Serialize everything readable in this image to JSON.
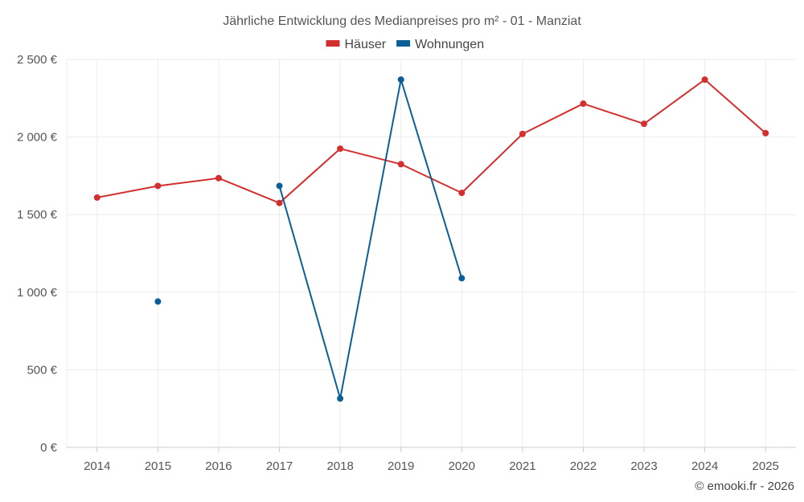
{
  "chart_data": {
    "type": "line",
    "title": "Jährliche Entwicklung des Medianpreises pro m² - 01 - Manziat",
    "categories": [
      "2014",
      "2015",
      "2016",
      "2017",
      "2018",
      "2019",
      "2020",
      "2021",
      "2022",
      "2023",
      "2024",
      "2025"
    ],
    "series": [
      {
        "name": "Häuser",
        "color": "#d32f2f",
        "values": [
          1610,
          1685,
          1735,
          1575,
          1925,
          1825,
          1640,
          2020,
          2215,
          2085,
          2370,
          2025
        ]
      },
      {
        "name": "Wohnungen",
        "color": "#0b5f97",
        "values": [
          null,
          940,
          null,
          1685,
          315,
          2370,
          1090,
          null,
          null,
          null,
          null,
          null
        ]
      }
    ],
    "ylim": [
      0,
      2500
    ],
    "yticks": [
      0,
      500,
      1000,
      1500,
      2000,
      2500
    ],
    "ytick_labels": [
      "0 €",
      "500 €",
      "1 000 €",
      "1 500 €",
      "2 000 €",
      "2 500 €"
    ],
    "legend_position": "top-center",
    "grid": true,
    "xlabel": "",
    "ylabel": ""
  },
  "credit": "© emooki.fr - 2026"
}
